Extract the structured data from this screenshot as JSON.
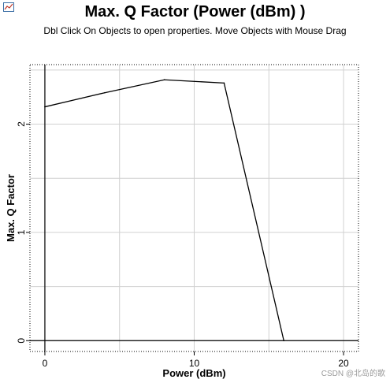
{
  "header": {
    "title": "Max. Q Factor (Power (dBm) )",
    "subtitle": "Dbl Click On Objects to open properties.  Move Objects with Mouse Drag"
  },
  "watermark": "CSDN @北岛的歌",
  "chart_data": {
    "type": "line",
    "title": "Max. Q Factor (Power (dBm) )",
    "xlabel": "Power (dBm)",
    "ylabel": "Max. Q Factor",
    "xlim": [
      -1,
      21
    ],
    "ylim": [
      -0.1,
      2.55
    ],
    "xticks": [
      0,
      10,
      20
    ],
    "yticks": [
      0,
      1,
      2
    ],
    "grid": true,
    "series": [
      {
        "x": [
          0,
          4,
          8,
          12,
          16
        ],
        "y": [
          2.16,
          2.29,
          2.41,
          2.38,
          0.0
        ]
      }
    ]
  }
}
